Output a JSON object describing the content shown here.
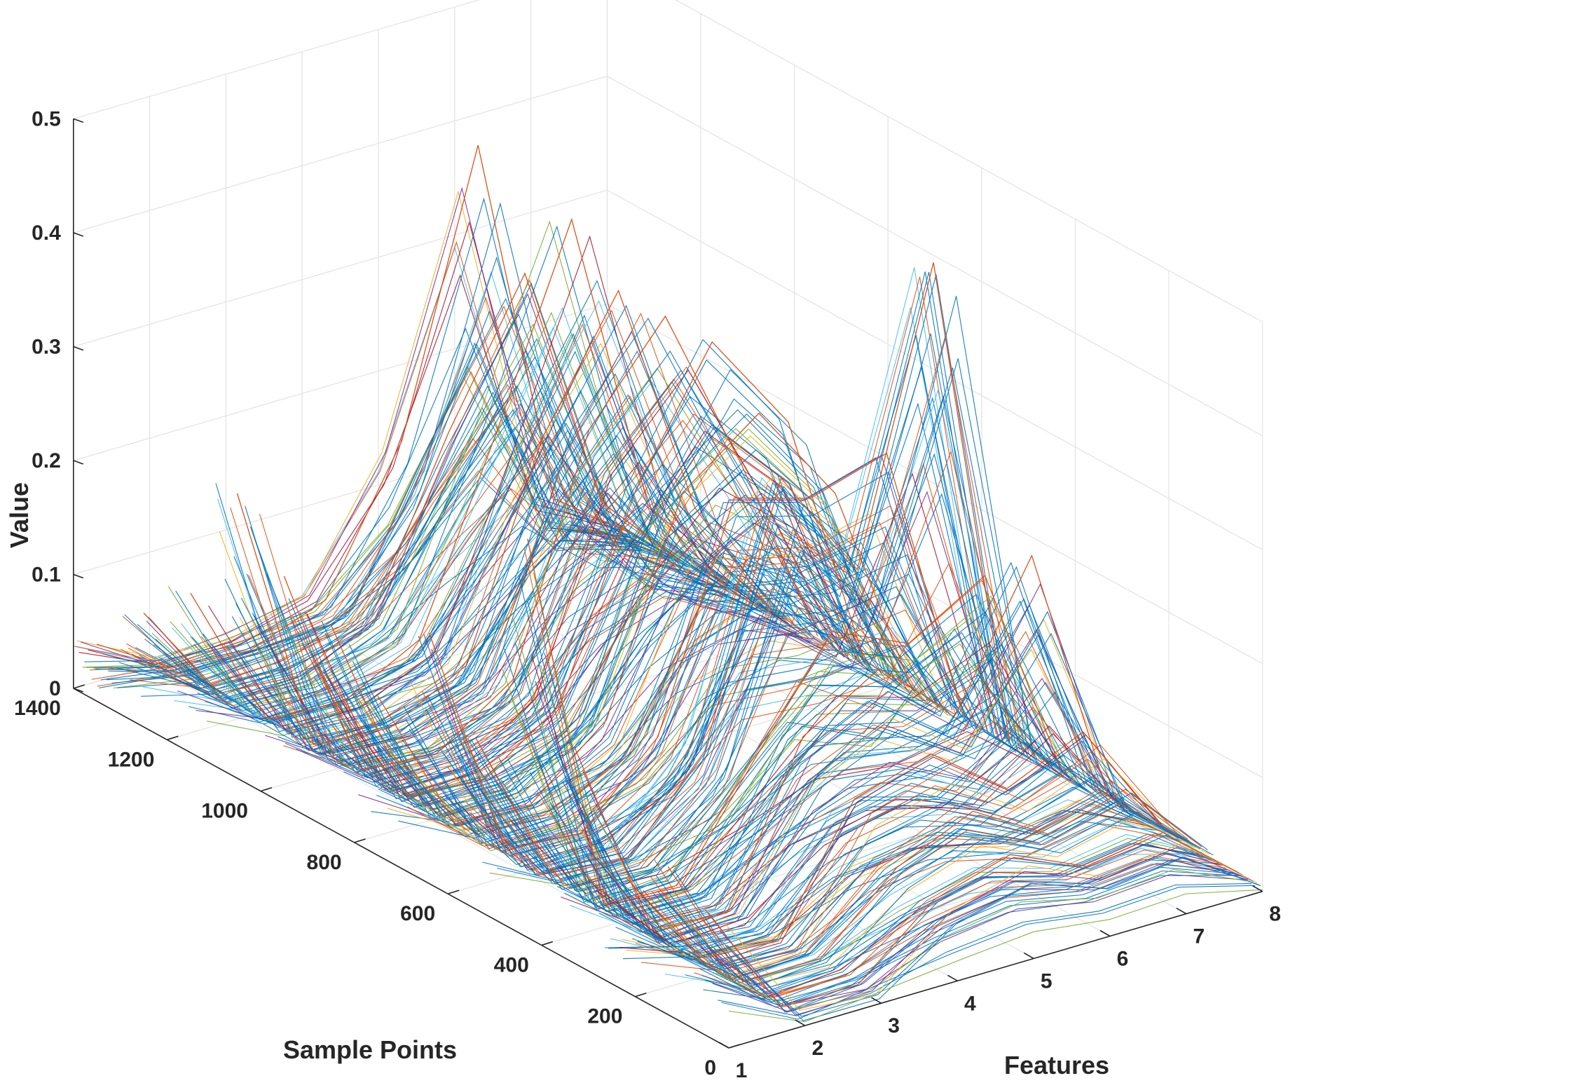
{
  "chart_data": {
    "type": "line",
    "subtype": "3d-waterfall",
    "title": "",
    "xlabel": "Features",
    "ylabel": "Sample Points",
    "zlabel": "Value",
    "x_ticks": [
      "1",
      "2",
      "3",
      "4",
      "5",
      "6",
      "7",
      "8"
    ],
    "y_ticks": [
      "0",
      "200",
      "400",
      "600",
      "800",
      "1000",
      "1200",
      "1400"
    ],
    "z_ticks": [
      "0",
      "0.1",
      "0.2",
      "0.3",
      "0.4",
      "0.5"
    ],
    "xlim": [
      1,
      8
    ],
    "ylim": [
      0,
      1400
    ],
    "zlim": [
      0,
      0.5
    ],
    "grid": true,
    "legend": "none",
    "features": [
      1,
      2,
      3,
      4,
      5,
      6,
      7,
      8
    ],
    "sample_count": 1400,
    "series_colors": [
      "#0072BD",
      "#D95319",
      "#EDB120",
      "#7E2F8E",
      "#77AC30",
      "#4DBEEE",
      "#A2142F"
    ],
    "peak_lines": [
      {
        "sample": 50,
        "values": [
          0.11,
          0.005,
          0.005,
          0.06,
          0.08,
          0.05,
          0.06,
          0.005
        ]
      },
      {
        "sample": 130,
        "values": [
          0.13,
          0.01,
          0.01,
          0.07,
          0.1,
          0.06,
          0.08,
          0.01
        ]
      },
      {
        "sample": 220,
        "values": [
          0.1,
          0.01,
          0.005,
          0.11,
          0.13,
          0.08,
          0.11,
          0.01
        ]
      },
      {
        "sample": 330,
        "values": [
          0.19,
          0.01,
          0.005,
          0.14,
          0.18,
          0.12,
          0.24,
          0.01
        ]
      },
      {
        "sample": 430,
        "values": [
          0.35,
          0.01,
          0.005,
          0.1,
          0.19,
          0.16,
          0.2,
          0.01
        ]
      },
      {
        "sample": 540,
        "values": [
          0.15,
          0.01,
          0.005,
          0.08,
          0.3,
          0.2,
          0.45,
          0.01
        ]
      },
      {
        "sample": 640,
        "values": [
          0.22,
          0.01,
          0.005,
          0.07,
          0.26,
          0.24,
          0.26,
          0.01
        ]
      },
      {
        "sample": 750,
        "values": [
          0.14,
          0.01,
          0.005,
          0.06,
          0.24,
          0.29,
          0.2,
          0.01
        ]
      },
      {
        "sample": 850,
        "values": [
          0.18,
          0.01,
          0.005,
          0.05,
          0.22,
          0.33,
          0.24,
          0.01
        ]
      },
      {
        "sample": 950,
        "values": [
          0.2,
          0.01,
          0.005,
          0.05,
          0.25,
          0.33,
          0.18,
          0.01
        ]
      },
      {
        "sample": 1050,
        "values": [
          0.25,
          0.01,
          0.005,
          0.04,
          0.22,
          0.33,
          0.12,
          0.01
        ]
      },
      {
        "sample": 1150,
        "values": [
          0.14,
          0.01,
          0.005,
          0.04,
          0.2,
          0.37,
          0.1,
          0.01
        ]
      },
      {
        "sample": 1250,
        "values": [
          0.1,
          0.01,
          0.005,
          0.04,
          0.18,
          0.3,
          0.08,
          0.01
        ]
      },
      {
        "sample": 1350,
        "values": [
          0.05,
          0.01,
          0.005,
          0.03,
          0.15,
          0.39,
          0.06,
          0.01
        ]
      }
    ]
  }
}
